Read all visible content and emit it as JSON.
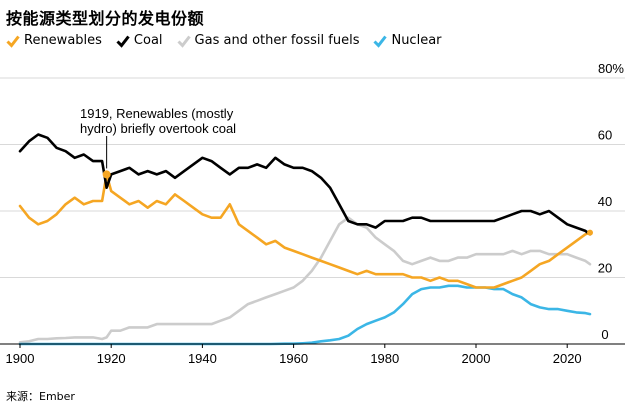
{
  "chart_data": {
    "type": "line",
    "title": "按能源类型划分的发电份额",
    "source": "来源：Ember",
    "xlabel": "",
    "ylabel": "",
    "xlim": [
      1900,
      2025
    ],
    "ylim": [
      0,
      80
    ],
    "y_ticks": [
      0,
      20,
      40,
      60
    ],
    "y_top_label": "80%",
    "x_ticks": [
      "1900",
      "1920",
      "1940",
      "1960",
      "1980",
      "2000",
      "2020"
    ],
    "x_tick_values": [
      1900,
      1920,
      1940,
      1960,
      1980,
      2000,
      2020
    ],
    "legend": [
      "Renewables",
      "Coal",
      "Gas and other fossil fuels",
      "Nuclear"
    ],
    "annotation": {
      "text_line1": "1919, Renewables (mostly",
      "text_line2": "hydro) briefly overtook coal",
      "x": 1919,
      "y": 51
    },
    "series": [
      {
        "name": "Renewables",
        "color": "#f5a623",
        "x": [
          1900,
          1902,
          1904,
          1906,
          1908,
          1910,
          1912,
          1914,
          1916,
          1918,
          1919,
          1920,
          1922,
          1924,
          1926,
          1928,
          1930,
          1932,
          1934,
          1936,
          1938,
          1940,
          1942,
          1944,
          1946,
          1948,
          1950,
          1952,
          1954,
          1956,
          1958,
          1960,
          1962,
          1964,
          1966,
          1968,
          1970,
          1972,
          1974,
          1976,
          1978,
          1980,
          1982,
          1984,
          1986,
          1988,
          1990,
          1992,
          1994,
          1996,
          1998,
          2000,
          2002,
          2004,
          2006,
          2008,
          2010,
          2012,
          2014,
          2016,
          2018,
          2020,
          2022,
          2024,
          2025
        ],
        "values": [
          41.5,
          38,
          36,
          37,
          39,
          42,
          44,
          42,
          43,
          43,
          51,
          46,
          44,
          42,
          43,
          41,
          43,
          42,
          45,
          43,
          41,
          39,
          38,
          38,
          42,
          36,
          34,
          32,
          30,
          31,
          29,
          28,
          27,
          26,
          25,
          24,
          23,
          22,
          21,
          22,
          21,
          21,
          21,
          21,
          20,
          20,
          19,
          20,
          19,
          19,
          18,
          17,
          17,
          17,
          18,
          19,
          20,
          22,
          24,
          25,
          27,
          29,
          31,
          33,
          33.5
        ]
      },
      {
        "name": "Coal",
        "color": "#000000",
        "x": [
          1900,
          1902,
          1904,
          1906,
          1908,
          1910,
          1912,
          1914,
          1916,
          1918,
          1919,
          1920,
          1922,
          1924,
          1926,
          1928,
          1930,
          1932,
          1934,
          1936,
          1938,
          1940,
          1942,
          1944,
          1946,
          1948,
          1950,
          1952,
          1954,
          1956,
          1958,
          1960,
          1962,
          1964,
          1966,
          1968,
          1970,
          1972,
          1974,
          1976,
          1978,
          1980,
          1982,
          1984,
          1986,
          1988,
          1990,
          1992,
          1994,
          1996,
          1998,
          2000,
          2002,
          2004,
          2006,
          2008,
          2010,
          2012,
          2014,
          2016,
          2018,
          2020,
          2022,
          2024,
          2025
        ],
        "values": [
          58,
          61,
          63,
          62,
          59,
          58,
          56,
          57,
          55,
          55,
          47,
          51,
          52,
          53,
          51,
          52,
          51,
          52,
          50,
          52,
          54,
          56,
          55,
          53,
          51,
          53,
          53,
          54,
          53,
          56,
          54,
          53,
          53,
          52,
          50,
          47,
          42,
          37,
          36,
          36,
          35,
          37,
          37,
          37,
          38,
          38,
          37,
          37,
          37,
          37,
          37,
          37,
          37,
          37,
          38,
          39,
          40,
          40,
          39,
          40,
          38,
          36,
          35,
          34,
          33
        ]
      },
      {
        "name": "Gas and other fossil fuels",
        "color": "#cccccc",
        "x": [
          1900,
          1902,
          1904,
          1906,
          1908,
          1910,
          1912,
          1914,
          1916,
          1918,
          1919,
          1920,
          1922,
          1924,
          1926,
          1928,
          1930,
          1932,
          1934,
          1936,
          1938,
          1940,
          1942,
          1944,
          1946,
          1948,
          1950,
          1952,
          1954,
          1956,
          1958,
          1960,
          1962,
          1964,
          1966,
          1968,
          1970,
          1972,
          1974,
          1976,
          1978,
          1980,
          1982,
          1984,
          1986,
          1988,
          1990,
          1992,
          1994,
          1996,
          1998,
          2000,
          2002,
          2004,
          2006,
          2008,
          2010,
          2012,
          2014,
          2016,
          2018,
          2020,
          2022,
          2024,
          2025
        ],
        "values": [
          0.5,
          0.8,
          1.5,
          1.5,
          1.7,
          1.8,
          2,
          2,
          2,
          1.5,
          2,
          4,
          4,
          5,
          5,
          5,
          6,
          6,
          6,
          6,
          6,
          6,
          6,
          7,
          8,
          10,
          12,
          13,
          14,
          15,
          16,
          17,
          19,
          22,
          26,
          31,
          36,
          38,
          36,
          35,
          32,
          30,
          28,
          25,
          24,
          25,
          26,
          25,
          25,
          26,
          26,
          27,
          27,
          27,
          27,
          28,
          27,
          28,
          28,
          27,
          27,
          27,
          26,
          25,
          24
        ]
      },
      {
        "name": "Nuclear",
        "color": "#3bb6e6",
        "x": [
          1900,
          1955,
          1958,
          1960,
          1962,
          1964,
          1966,
          1968,
          1970,
          1972,
          1974,
          1976,
          1978,
          1980,
          1982,
          1984,
          1986,
          1988,
          1990,
          1992,
          1994,
          1996,
          1998,
          2000,
          2002,
          2004,
          2006,
          2008,
          2010,
          2012,
          2014,
          2016,
          2018,
          2020,
          2022,
          2024,
          2025
        ],
        "values": [
          0,
          0,
          0.1,
          0.1,
          0.2,
          0.4,
          0.8,
          1.1,
          1.5,
          2.5,
          4.5,
          6,
          7,
          8,
          9.5,
          12,
          15,
          16.5,
          17,
          17,
          17.5,
          17.5,
          17,
          17,
          17,
          16.5,
          16.5,
          15,
          14,
          12,
          11,
          10.5,
          10.5,
          10,
          9.5,
          9.3,
          9
        ]
      }
    ]
  }
}
